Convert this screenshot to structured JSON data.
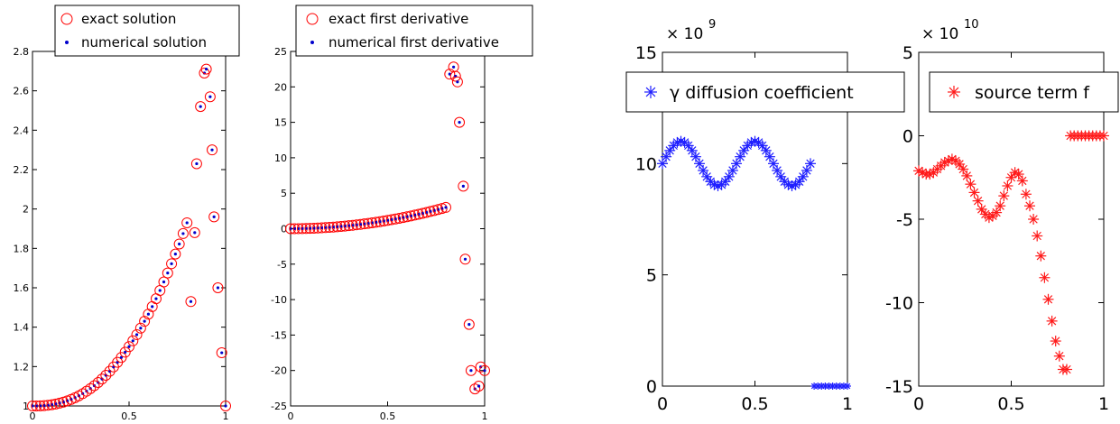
{
  "colors": {
    "exact": "#ff0000",
    "numerical": "#0000cc",
    "gamma": "#1f1fff",
    "source": "#ff1a1a"
  },
  "chart_data": [
    {
      "type": "scatter",
      "xlim": [
        0,
        1
      ],
      "ylim": [
        1,
        2.8
      ],
      "xticks": [
        "0",
        "0.5",
        "1"
      ],
      "yticks": [
        "1",
        "1.2",
        "1.4",
        "1.6",
        "1.8",
        "2",
        "2.2",
        "2.4",
        "2.6",
        "2.8"
      ],
      "legend": {
        "placement": "top",
        "entries": [
          "exact solution",
          "numerical solution"
        ]
      },
      "smooth_curve": {
        "x_start": 0.0,
        "x_end": 0.8,
        "count": 41,
        "y_start": 1.0,
        "y_end": 1.93,
        "exponent": 2.4
      },
      "scattered_points": {
        "x": [
          0.82,
          0.84,
          0.85,
          0.87,
          0.89,
          0.9,
          0.92,
          0.93,
          0.94,
          0.96,
          0.98,
          1.0
        ],
        "y": [
          1.53,
          1.88,
          2.23,
          2.52,
          2.69,
          2.71,
          2.57,
          2.3,
          1.96,
          1.6,
          1.27,
          1.0
        ]
      }
    },
    {
      "type": "scatter",
      "xlim": [
        0,
        1
      ],
      "ylim": [
        -25,
        25
      ],
      "xticks": [
        "0",
        "0.5",
        "1"
      ],
      "yticks": [
        "-25",
        "-20",
        "-15",
        "-10",
        "-5",
        "0",
        "5",
        "10",
        "15",
        "20",
        "25"
      ],
      "legend": {
        "placement": "top",
        "entries": [
          "exact first derivative",
          "numerical first derivative"
        ]
      },
      "smooth_curve": {
        "x_start": 0.0,
        "x_end": 0.8,
        "count": 41,
        "y_start": 0.0,
        "y_end": 3.0,
        "exponent": 2.0
      },
      "scattered_points": {
        "x": [
          0.82,
          0.84,
          0.85,
          0.86,
          0.87,
          0.89,
          0.9,
          0.92,
          0.93,
          0.95,
          0.97,
          0.98,
          1.0
        ],
        "y": [
          21.8,
          22.8,
          21.5,
          20.7,
          15.0,
          6.0,
          -4.3,
          -13.5,
          -20.0,
          -22.6,
          -22.2,
          -19.5,
          -20.0
        ]
      }
    },
    {
      "type": "scatter",
      "xlim": [
        0,
        1
      ],
      "ylim": [
        0,
        15
      ],
      "xticks": [
        "0",
        "0.5",
        "1"
      ],
      "yticks": [
        "0",
        "5",
        "10",
        "15"
      ],
      "exponent_label": {
        "base": "× 10",
        "power": "9"
      },
      "legend": {
        "placement": "top",
        "entries": [
          "γ diffusion coefficient"
        ]
      },
      "sine_points": {
        "x_start": 0.0,
        "x_end": 0.8,
        "count": 41,
        "center": 10.0,
        "amplitude": 1.0,
        "period": 0.4,
        "phase_shift": 0.0
      },
      "flat_points": {
        "x_start": 0.82,
        "x_end": 1.0,
        "count": 10,
        "y": 0.0
      }
    },
    {
      "type": "scatter",
      "xlim": [
        0,
        1
      ],
      "ylim": [
        -15,
        5
      ],
      "xticks": [
        "0",
        "0.5",
        "1"
      ],
      "yticks": [
        "-15",
        "-10",
        "-5",
        "0",
        "5"
      ],
      "exponent_label": {
        "base": "× 10",
        "power": "10"
      },
      "legend": {
        "placement": "top",
        "entries": [
          "source term f"
        ]
      },
      "points": {
        "x": [
          0.0,
          0.02,
          0.04,
          0.06,
          0.08,
          0.1,
          0.12,
          0.14,
          0.16,
          0.18,
          0.2,
          0.22,
          0.24,
          0.26,
          0.28,
          0.3,
          0.32,
          0.34,
          0.36,
          0.38,
          0.4,
          0.42,
          0.44,
          0.46,
          0.48,
          0.5,
          0.52,
          0.54,
          0.56,
          0.58,
          0.6,
          0.62,
          0.64,
          0.66,
          0.68,
          0.7,
          0.72,
          0.74,
          0.76,
          0.78,
          0.8,
          0.82,
          0.84,
          0.86,
          0.88,
          0.9,
          0.92,
          0.94,
          0.96,
          0.98,
          1.0
        ],
        "y": [
          -2.1,
          -2.2,
          -2.3,
          -2.3,
          -2.2,
          -2.0,
          -1.8,
          -1.6,
          -1.5,
          -1.4,
          -1.5,
          -1.7,
          -2.0,
          -2.4,
          -2.9,
          -3.4,
          -3.9,
          -4.4,
          -4.7,
          -4.9,
          -4.8,
          -4.6,
          -4.2,
          -3.6,
          -3.0,
          -2.5,
          -2.2,
          -2.3,
          -2.7,
          -3.5,
          -4.2,
          -5.0,
          -6.0,
          -7.2,
          -8.5,
          -9.8,
          -11.1,
          -12.3,
          -13.2,
          -14.0,
          -14.0,
          0.0,
          0.0,
          0.0,
          0.0,
          0.0,
          0.0,
          0.0,
          0.0,
          0.0,
          0.0
        ]
      }
    }
  ]
}
